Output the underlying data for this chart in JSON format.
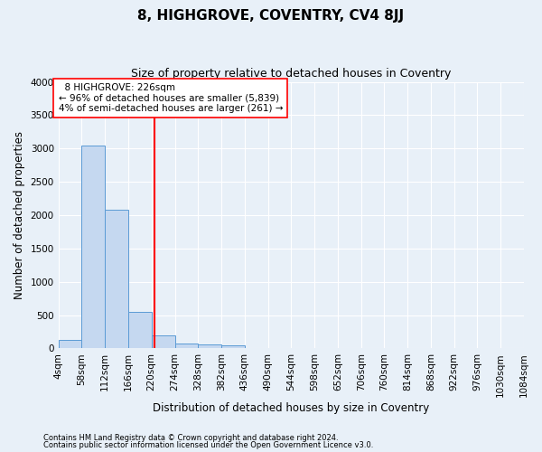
{
  "title": "8, HIGHGROVE, COVENTRY, CV4 8JJ",
  "subtitle": "Size of property relative to detached houses in Coventry",
  "xlabel": "Distribution of detached houses by size in Coventry",
  "ylabel": "Number of detached properties",
  "footnote1": "Contains HM Land Registry data © Crown copyright and database right 2024.",
  "footnote2": "Contains public sector information licensed under the Open Government Licence v3.0.",
  "annotation_line1": "  8 HIGHGROVE: 226sqm",
  "annotation_line2": "← 96% of detached houses are smaller (5,839)",
  "annotation_line3": "4% of semi-detached houses are larger (261) →",
  "bar_edges": [
    4,
    58,
    112,
    166,
    220,
    274,
    328,
    382,
    436,
    490,
    544,
    598,
    652,
    706,
    760,
    814,
    868,
    922,
    976,
    1030,
    1084
  ],
  "bar_heights": [
    130,
    3050,
    2080,
    545,
    200,
    80,
    55,
    45,
    0,
    0,
    0,
    0,
    0,
    0,
    0,
    0,
    0,
    0,
    0,
    0
  ],
  "bar_color": "#c5d8f0",
  "bar_edge_color": "#5b9bd5",
  "red_line_x": 226,
  "ylim": [
    0,
    4000
  ],
  "yticks": [
    0,
    500,
    1000,
    1500,
    2000,
    2500,
    3000,
    3500,
    4000
  ],
  "background_color": "#e8f0f8",
  "grid_color": "#ffffff",
  "title_fontsize": 11,
  "subtitle_fontsize": 9,
  "axis_label_fontsize": 8.5,
  "tick_fontsize": 7.5,
  "annotation_fontsize": 7.5
}
